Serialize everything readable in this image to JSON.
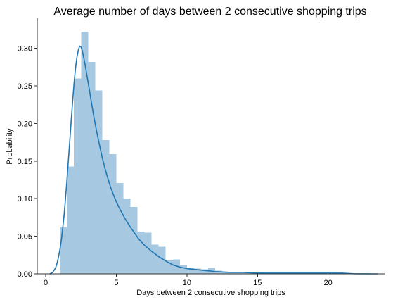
{
  "chart_data": {
    "type": "bar",
    "title": "Average number of days between 2 consecutive shopping trips",
    "xlabel": "Days between 2 consecutive shopping trips",
    "ylabel": "Probability",
    "xlim": [
      -0.6,
      24.0
    ],
    "ylim": [
      0,
      0.34
    ],
    "xticks": [
      0,
      5,
      10,
      15,
      20
    ],
    "yticks": [
      0.0,
      0.05,
      0.1,
      0.15,
      0.2,
      0.25,
      0.3
    ],
    "ytick_labels": [
      "0.00",
      "0.05",
      "0.10",
      "0.15",
      "0.20",
      "0.25",
      "0.30"
    ],
    "grid": false,
    "legend": false,
    "colors": {
      "bar": "#a6c8e0",
      "line": "#1f77b4"
    },
    "histogram": {
      "bin_edges": [
        1.0,
        1.5,
        2.0,
        2.5,
        3.0,
        3.5,
        4.0,
        4.5,
        5.0,
        5.5,
        6.0,
        6.5,
        7.0,
        7.5,
        8.0,
        8.5,
        9.0,
        9.5,
        10.0,
        10.5,
        11.0,
        11.5,
        12.0,
        12.5,
        13.0,
        13.5,
        14.0,
        14.5,
        15.0,
        15.5,
        16.0,
        16.5,
        17.0,
        17.5,
        18.0,
        18.5,
        19.0,
        19.5,
        20.0,
        20.5,
        21.0,
        21.5,
        22.0,
        22.5,
        23.0
      ],
      "values": [
        0.062,
        0.143,
        0.26,
        0.322,
        0.282,
        0.244,
        0.178,
        0.159,
        0.121,
        0.1,
        0.089,
        0.056,
        0.055,
        0.039,
        0.036,
        0.018,
        0.019,
        0.012,
        0.008,
        0.007,
        0.006,
        0.008,
        0.004,
        0.003,
        0.003,
        0.002,
        0.002,
        0.002,
        0.002,
        0.001,
        0.001,
        0.001,
        0.001,
        0.001,
        0.001,
        0.001,
        0.001,
        0.001,
        0.001,
        0.001,
        0.001,
        0.001,
        0.001,
        0.001
      ]
    },
    "kde": {
      "x": [
        0.3,
        0.5,
        0.7,
        0.8,
        0.9,
        1.0,
        1.1,
        1.2,
        1.3,
        1.4,
        1.5,
        1.6,
        1.7,
        1.8,
        1.9,
        2.0,
        2.1,
        2.2,
        2.3,
        2.4,
        2.5,
        2.6,
        2.7,
        2.8,
        2.9,
        3.0,
        3.1,
        3.2,
        3.4,
        3.6,
        3.8,
        4.0,
        4.2,
        4.4,
        4.6,
        4.8,
        5.0,
        5.2,
        5.4,
        5.6,
        5.8,
        6.0,
        6.3,
        6.6,
        7.0,
        7.5,
        8.0,
        8.5,
        9.0,
        9.5,
        10.0,
        10.5,
        11.0,
        11.5,
        12.0,
        13.0,
        14.0,
        15.0,
        16.0,
        17.0,
        18.0,
        19.0,
        20.0,
        21.0,
        22.0,
        23.0,
        23.5
      ],
      "y": [
        0.0,
        0.002,
        0.008,
        0.014,
        0.022,
        0.032,
        0.044,
        0.06,
        0.078,
        0.1,
        0.124,
        0.15,
        0.176,
        0.203,
        0.228,
        0.252,
        0.272,
        0.287,
        0.297,
        0.303,
        0.302,
        0.296,
        0.287,
        0.277,
        0.266,
        0.255,
        0.244,
        0.232,
        0.21,
        0.19,
        0.172,
        0.155,
        0.14,
        0.127,
        0.115,
        0.105,
        0.096,
        0.088,
        0.081,
        0.074,
        0.068,
        0.062,
        0.054,
        0.046,
        0.038,
        0.03,
        0.023,
        0.017,
        0.012,
        0.009,
        0.007,
        0.006,
        0.005,
        0.004,
        0.003,
        0.002,
        0.002,
        0.001,
        0.001,
        0.001,
        0.001,
        0.001,
        0.001,
        0.001,
        0.0,
        0.0,
        0.0
      ]
    }
  }
}
